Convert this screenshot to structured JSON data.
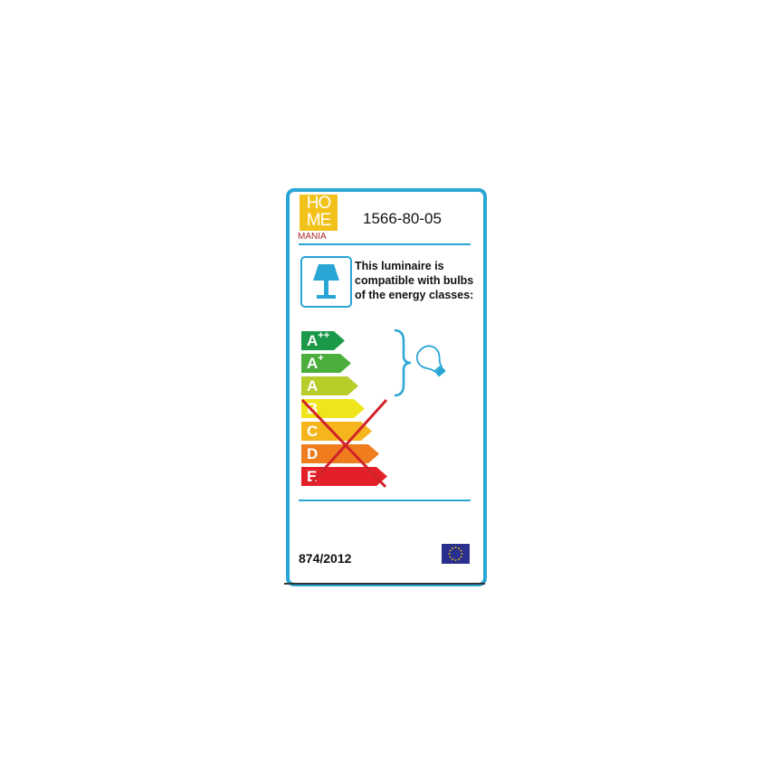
{
  "brand": {
    "logo_top": "HO",
    "logo_mid": "ME",
    "logo_bottom": "MANIA",
    "logo_color": "#f2c21b"
  },
  "product_code": "1566-80-05",
  "description": "This luminaire is compatible with bulbs of the energy classes:",
  "energy_classes": [
    {
      "label": "A",
      "sup": "++",
      "color": "#1a9a48",
      "compatible": true
    },
    {
      "label": "A",
      "sup": "+",
      "color": "#4caf3d",
      "compatible": true
    },
    {
      "label": "A",
      "sup": "",
      "color": "#b8cc2a",
      "compatible": true
    },
    {
      "label": "B",
      "sup": "",
      "color": "#f0e51c",
      "compatible": false
    },
    {
      "label": "C",
      "sup": "",
      "color": "#f5b51c",
      "compatible": false
    },
    {
      "label": "D",
      "sup": "",
      "color": "#ef7d1e",
      "compatible": false
    },
    {
      "label": "E",
      "sup": "",
      "color": "#e3202a",
      "compatible": false
    }
  ],
  "regulation": "874/2012",
  "accent_color": "#2aa6d6",
  "icons": [
    "table-lamp-icon",
    "light-bulb-icon",
    "eu-flag-icon"
  ]
}
